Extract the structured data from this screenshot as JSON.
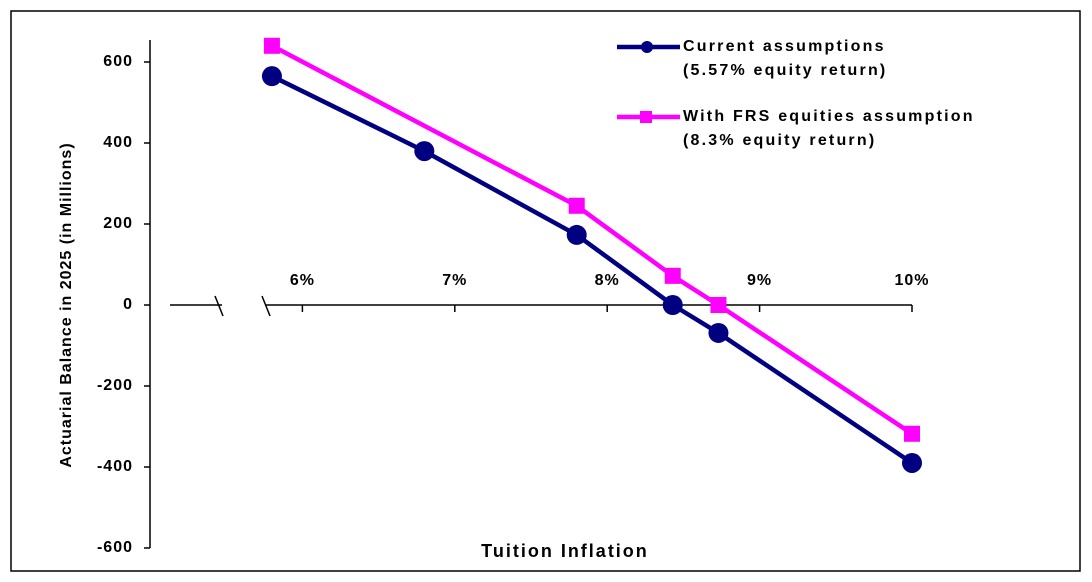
{
  "chart_data": {
    "type": "line",
    "x_label": "Tuition Inflation",
    "y_label": "Actuarial Balance in 2025 (in Millions)",
    "series": [
      {
        "name": "Current assumptions\n(5.57% equity return)",
        "color": "#000080",
        "marker": "circle",
        "x": [
          5.8,
          6.8,
          7.8,
          8.43,
          8.73,
          10
        ],
        "values": [
          565,
          380,
          173,
          0,
          -69,
          -390
        ]
      },
      {
        "name": "With FRS equities assumption\n(8.3% equity return)",
        "color": "#ff00ff",
        "marker": "square",
        "x": [
          5.8,
          7.8,
          8.43,
          8.73,
          10
        ],
        "values": [
          640,
          245,
          72,
          0,
          -318
        ]
      }
    ],
    "xlim": [
      5,
      10
    ],
    "xticks": [
      {
        "value": 6,
        "label": "6%"
      },
      {
        "value": 7,
        "label": "7%"
      },
      {
        "value": 8,
        "label": "8%"
      },
      {
        "value": 9,
        "label": "9%"
      },
      {
        "value": 10,
        "label": "10%"
      }
    ],
    "ylim": [
      -600,
      600
    ],
    "yticks": [
      -600,
      -400,
      -200,
      0,
      200,
      400,
      600
    ],
    "grid": false,
    "legend": "top-right"
  }
}
